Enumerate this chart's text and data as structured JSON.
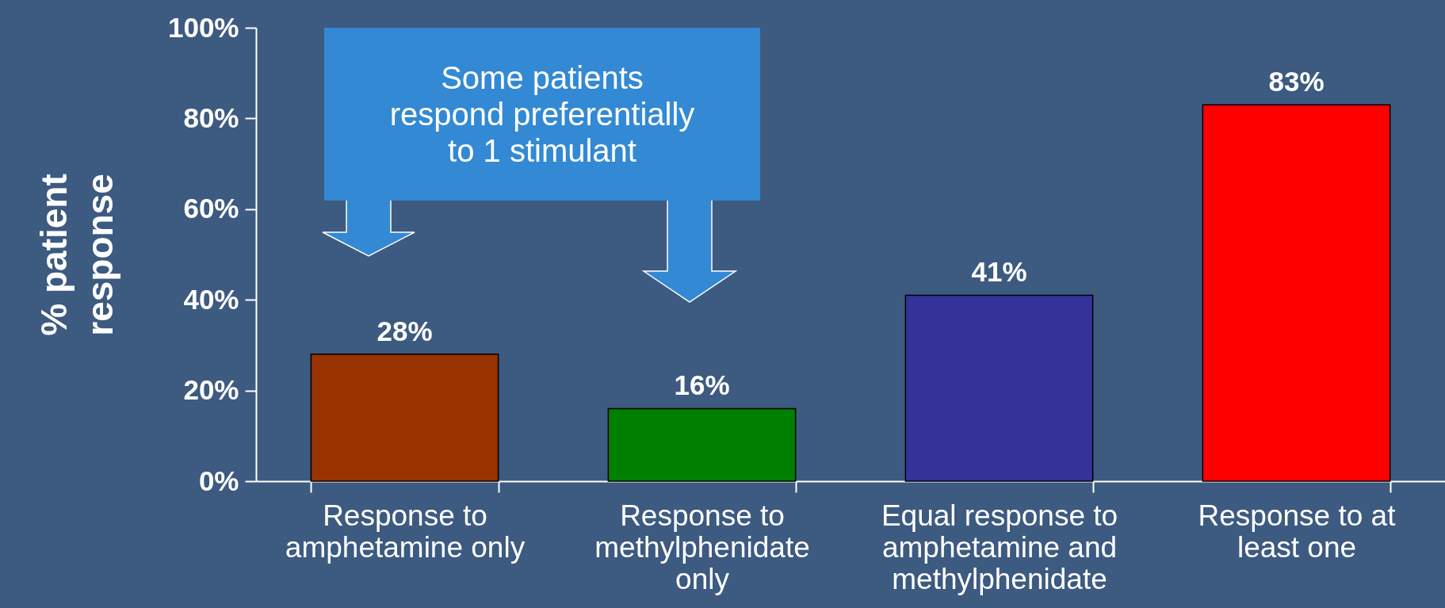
{
  "chart_data": {
    "type": "bar",
    "ylabel": "% patient response",
    "categories": [
      "Response to amphetamine only",
      "Response to methylphenidate only",
      "Equal response to amphetamine and methylphenidate",
      "Response to at least one"
    ],
    "values": [
      28,
      16,
      41,
      83
    ],
    "colors": [
      "#993300",
      "#008000",
      "#333399",
      "#ff0000"
    ],
    "value_labels": [
      "28%",
      "16%",
      "41%",
      "83%"
    ],
    "ylim": [
      0,
      100
    ],
    "yticks": [
      {
        "value": 0,
        "label": "0%"
      },
      {
        "value": 20,
        "label": "20%"
      },
      {
        "value": 40,
        "label": "40%"
      },
      {
        "value": 60,
        "label": "60%"
      },
      {
        "value": 80,
        "label": "80%"
      },
      {
        "value": 100,
        "label": "100%"
      }
    ],
    "grid": false,
    "annotations": [
      "Some patients respond preferentially to 1 stimulant"
    ]
  }
}
